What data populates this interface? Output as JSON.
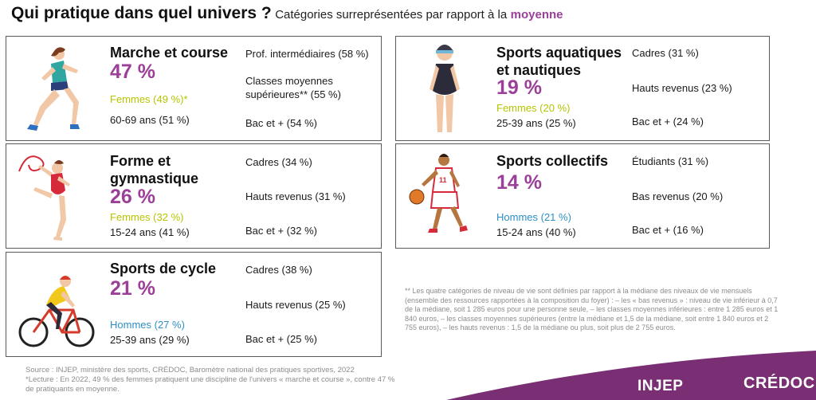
{
  "title": {
    "main": "Qui pratique dans quel univers ?",
    "sub": "Catégories surreprésentées par rapport à la",
    "accent": "moyenne"
  },
  "cards": {
    "walk": {
      "name": "Marche et course",
      "pct": "47 %",
      "gender": "Femmes (49 %)*",
      "age": "60-69 ans (51 %)",
      "c1": "Prof. intermédiaires (58 %)",
      "c2": "Classes moyennes supérieures** (55 %)",
      "c3": "Bac et + (54 %)"
    },
    "gym": {
      "name_l1": "Forme et",
      "name_l2": "gymnastique",
      "pct": "26 %",
      "gender": "Femmes (32 %)",
      "age": "15-24 ans (41 %)",
      "c1": "Cadres (34 %)",
      "c2": "Hauts revenus (31 %)",
      "c3": "Bac et + (32 %)"
    },
    "cycle": {
      "name": "Sports de cycle",
      "pct": "21 %",
      "gender": "Hommes (27 %)",
      "age": "25-39 ans (29 %)",
      "c1": "Cadres (38 %)",
      "c2": "Hauts revenus (25 %)",
      "c3": "Bac et + (25 %)"
    },
    "water": {
      "name_l1": "Sports aquatiques",
      "name_l2": "et nautiques",
      "pct": "19 %",
      "gender": "Femmes (20 %)",
      "age": "25-39 ans (25 %)",
      "c1": "Cadres (31 %)",
      "c2": "Hauts revenus (23 %)",
      "c3": "Bac et + (24 %)"
    },
    "team": {
      "name": "Sports collectifs",
      "pct": "14 %",
      "gender": "Hommes (21 %)",
      "age": "15-24 ans (40 %)",
      "c1": "Étudiants (31 %)",
      "c2": "Bas revenus (20 %)",
      "c3": "Bac et + (16 %)"
    }
  },
  "note": "** Les quatre catégories de niveau de vie sont définies par rapport à la médiane des niveaux de vie mensuels (ensemble des ressources rapportées à la composition du foyer) : – les « bas revenus » : niveau de vie inférieur à 0,7 de la médiane, soit 1 285 euros pour une personne seule, – les classes moyennes inférieures : entre 1 285 euros et 1 840 euros, – les classes moyennes supérieures (entre la médiane et 1,5 de la médiane, soit entre 1 840 euros et 2 755 euros), – les hauts revenus : 1,5 de la médiane ou plus, soit plus de 2 755 euros.",
  "source": {
    "line1": "Source : INJEP, ministère des sports, CRÉDOC, Baromètre national des pratiques sportives, 2022",
    "line2": "*Lecture : En 2022, 49 % des femmes pratiquent une discipline de l'univers « marche et course », contre 47 % de pratiquants en moyenne."
  },
  "logos": {
    "injep": "INJEP",
    "credoc": "CRÉDOC"
  },
  "colors": {
    "purple": "#9b3f99",
    "green": "#b7c400",
    "blue": "#2e8fc6",
    "band": "#7a2f74"
  }
}
